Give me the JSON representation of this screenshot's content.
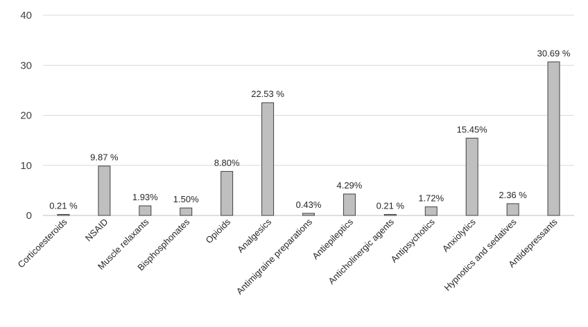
{
  "chart_data": {
    "type": "bar",
    "title": "",
    "xlabel": "",
    "ylabel": "",
    "ylim": [
      0,
      40
    ],
    "yticks": [
      0,
      10,
      20,
      30,
      40
    ],
    "grid": true,
    "bar_color": "#bfbfbf",
    "bar_edge_color": "#404040",
    "categories": [
      "Corticoesteroids",
      "NSAID",
      "Muscle relaxants",
      "Bisphosphonates",
      "Opioids",
      "Analgesics",
      "Antimigraine preparations",
      "Antiepileptics",
      "Anticholinergic agents",
      "Antipsychotics",
      "Anxiolytics",
      "Hypnotics and sedatives",
      "Antidepressants"
    ],
    "values": [
      0.21,
      9.87,
      1.93,
      1.5,
      8.8,
      22.53,
      0.43,
      4.29,
      0.21,
      1.72,
      15.45,
      2.36,
      30.69
    ],
    "data_labels": [
      "0.21 %",
      "9.87 %",
      "1.93%",
      "1.50%",
      "8.80%",
      "22.53 %",
      "0.43%",
      "4.29%",
      "0.21 %",
      "1.72%",
      "15.45%",
      "2.36 %",
      "30.69 %"
    ]
  }
}
